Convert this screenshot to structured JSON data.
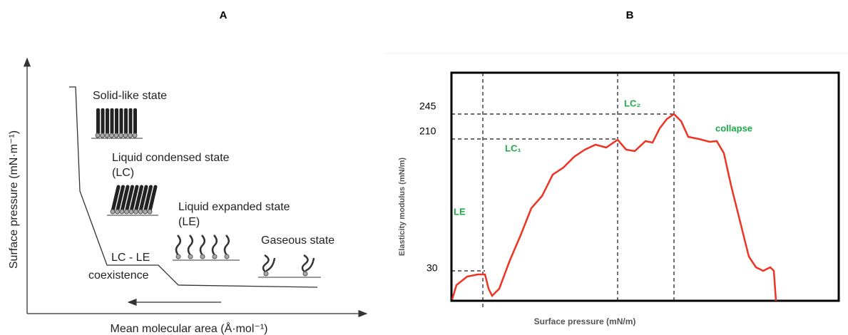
{
  "panels": [
    {
      "label": "A",
      "y_axis_label": "Surface pressure (mN·m⁻¹)",
      "x_axis_label": "Mean molecular area (Å·mol⁻¹)",
      "states": [
        "Solid-like state",
        "Liquid condensed state",
        "(LC)",
        "Liquid expanded state",
        "(LE)",
        "Gaseous state",
        "LC - LE",
        "coexistence"
      ]
    },
    {
      "label": "B",
      "y_axis_label": "Elasticity modulus (mN/m)",
      "x_axis_label": "Surface pressure (mN/m)",
      "y_labels": [
        245,
        210,
        30
      ],
      "phases": [
        "LC₂",
        "collapse",
        "LC₁",
        "LE"
      ]
    }
  ]
}
